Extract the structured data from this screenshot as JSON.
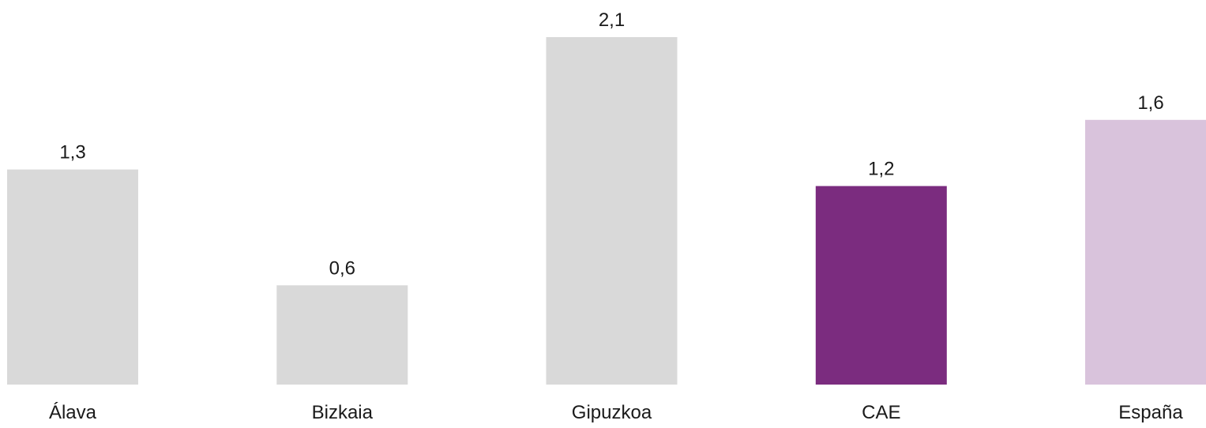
{
  "chart_data": {
    "type": "bar",
    "title": "",
    "xlabel": "",
    "ylabel": "",
    "categories": [
      "Álava",
      "Bizkaia",
      "Gipuzkoa",
      "CAE",
      "España"
    ],
    "values": [
      1.3,
      0.6,
      2.1,
      1.2,
      1.6
    ],
    "value_labels": [
      "1,3",
      "0,6",
      "2,1",
      "1,2",
      "1,6"
    ],
    "bar_colors": [
      "#d9d9d9",
      "#d9d9d9",
      "#d9d9d9",
      "#7b2c7f",
      "#d9c3dc"
    ],
    "ylim": [
      0,
      2.1
    ],
    "grid": false,
    "legend": "none"
  }
}
